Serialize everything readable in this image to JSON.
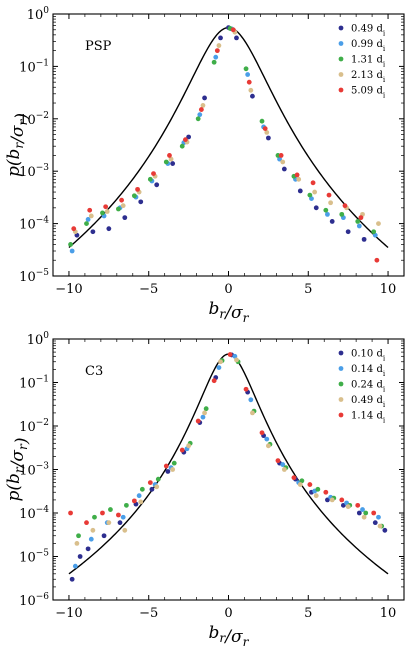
{
  "chart_data": [
    {
      "type": "scatter",
      "panel_label": "PSP",
      "xlabel": "b_r/σ_r",
      "ylabel": "p(b_r/σ_r)",
      "xlim": [
        -11,
        11
      ],
      "ylim_log10": [
        -5,
        0
      ],
      "y_scale": "log",
      "x_ticks": [
        -10,
        -5,
        0,
        5,
        10
      ],
      "y_ticks": [
        "10^-5",
        "10^-4",
        "10^-3",
        "10^-2",
        "10^-1",
        "10^0"
      ],
      "legend_position": "top-right",
      "fit_curve": {
        "style": "solid black",
        "peak": 0.55,
        "value_at_10": 3.5e-05
      },
      "series": [
        {
          "name": "0.49 d_i",
          "color": "#2d2e8f",
          "points": [
            [
              -9.5,
              6e-05
            ],
            [
              -8.5,
              7e-05
            ],
            [
              -7.5,
              8e-05
            ],
            [
              -6.5,
              0.00013
            ],
            [
              -5.5,
              0.00026
            ],
            [
              -4.5,
              0.00055
            ],
            [
              -3.5,
              0.0014
            ],
            [
              -2.5,
              0.0045
            ],
            [
              -1.5,
              0.025
            ],
            [
              -0.5,
              0.35
            ],
            [
              0,
              0.55
            ],
            [
              0.5,
              0.35
            ],
            [
              1.5,
              0.027
            ],
            [
              2.5,
              0.0043
            ],
            [
              3.5,
              0.0011
            ],
            [
              4.5,
              0.00042
            ],
            [
              5.5,
              0.0002
            ],
            [
              6.5,
              0.00011
            ],
            [
              7.5,
              7e-05
            ],
            [
              8.5,
              5e-05
            ]
          ]
        },
        {
          "name": "0.99 d_i",
          "color": "#4a9ee8",
          "points": [
            [
              -9.8,
              3e-05
            ],
            [
              -8.8,
              0.00012
            ],
            [
              -7.8,
              0.00014
            ],
            [
              -6.8,
              0.0002
            ],
            [
              -5.8,
              0.00032
            ],
            [
              -4.8,
              0.00065
            ],
            [
              -3.8,
              0.0014
            ],
            [
              -2.8,
              0.0035
            ],
            [
              -1.8,
              0.012
            ],
            [
              -0.8,
              0.15
            ],
            [
              0.2,
              0.52
            ],
            [
              1.2,
              0.07
            ],
            [
              2.2,
              0.007
            ],
            [
              3.2,
              0.0017
            ],
            [
              4.2,
              0.0007
            ],
            [
              5.2,
              0.0003
            ],
            [
              6.2,
              0.00015
            ],
            [
              7.2,
              0.00013
            ],
            [
              8.2,
              9e-05
            ],
            [
              9.2,
              6e-05
            ]
          ]
        },
        {
          "name": "1.31 d_i",
          "color": "#3fae49",
          "points": [
            [
              -9.9,
              4e-05
            ],
            [
              -8.9,
              0.0001
            ],
            [
              -7.9,
              0.00016
            ],
            [
              -6.9,
              0.00019
            ],
            [
              -5.9,
              0.00034
            ],
            [
              -4.9,
              0.0007
            ],
            [
              -3.9,
              0.0015
            ],
            [
              -2.9,
              0.003
            ],
            [
              -1.9,
              0.01
            ],
            [
              -0.9,
              0.12
            ],
            [
              0.1,
              0.53
            ],
            [
              1.1,
              0.09
            ],
            [
              2.1,
              0.009
            ],
            [
              3.1,
              0.002
            ],
            [
              4.1,
              0.0008
            ],
            [
              5.1,
              0.00035
            ],
            [
              6.1,
              0.00018
            ],
            [
              7.1,
              0.00015
            ],
            [
              8.1,
              0.00011
            ],
            [
              9.1,
              7e-05
            ]
          ]
        },
        {
          "name": "2.13 d_i",
          "color": "#d9bf8c",
          "points": [
            [
              -9.6,
              7e-05
            ],
            [
              -8.6,
              0.00014
            ],
            [
              -7.6,
              0.00017
            ],
            [
              -6.6,
              0.00022
            ],
            [
              -5.6,
              0.0004
            ],
            [
              -4.6,
              0.0008
            ],
            [
              -3.6,
              0.0017
            ],
            [
              -2.6,
              0.0036
            ],
            [
              -1.6,
              0.018
            ],
            [
              -0.6,
              0.25
            ],
            [
              0.4,
              0.45
            ],
            [
              1.4,
              0.035
            ],
            [
              2.4,
              0.0055
            ],
            [
              3.4,
              0.0015
            ],
            [
              4.4,
              0.0007
            ],
            [
              5.4,
              0.0004
            ],
            [
              6.4,
              0.00025
            ],
            [
              7.4,
              0.0002
            ],
            [
              8.4,
              0.00015
            ],
            [
              9.4,
              0.0001
            ]
          ]
        },
        {
          "name": "5.09 d_i",
          "color": "#e83a36",
          "points": [
            [
              -9.7,
              8e-05
            ],
            [
              -8.7,
              0.00018
            ],
            [
              -7.7,
              0.00021
            ],
            [
              -6.7,
              0.00028
            ],
            [
              -5.7,
              0.00045
            ],
            [
              -4.7,
              0.0009
            ],
            [
              -3.7,
              0.002
            ],
            [
              -2.7,
              0.004
            ],
            [
              -1.7,
              0.015
            ],
            [
              -0.7,
              0.2
            ],
            [
              0.3,
              0.5
            ],
            [
              1.3,
              0.05
            ],
            [
              2.3,
              0.0065
            ],
            [
              3.3,
              0.002
            ],
            [
              4.3,
              0.00085
            ],
            [
              5.3,
              0.0006
            ],
            [
              6.3,
              0.00035
            ],
            [
              7.3,
              0.00022
            ],
            [
              8.3,
              0.00013
            ],
            [
              9.3,
              2e-05
            ]
          ]
        }
      ]
    },
    {
      "type": "scatter",
      "panel_label": "C3",
      "xlabel": "b_r/σ_r",
      "ylabel": "p(b_r/σ_r)",
      "xlim": [
        -11,
        11
      ],
      "ylim_log10": [
        -6,
        0
      ],
      "y_scale": "log",
      "x_ticks": [
        -10,
        -5,
        0,
        5,
        10
      ],
      "y_ticks": [
        "10^-6",
        "10^-5",
        "10^-4",
        "10^-3",
        "10^-2",
        "10^-1",
        "10^0"
      ],
      "legend_position": "top-right",
      "fit_curve": {
        "style": "solid black",
        "peak": 0.45,
        "value_at_10": 4e-06
      },
      "series": [
        {
          "name": "0.10 d_i",
          "color": "#2d2e8f",
          "points": [
            [
              -9.8,
              3e-06
            ],
            [
              -9.3,
              1e-05
            ],
            [
              -8.8,
              1.5e-05
            ],
            [
              -7.8,
              3e-05
            ],
            [
              -6.8,
              6e-05
            ],
            [
              -5.8,
              0.00016
            ],
            [
              -4.8,
              0.00035
            ],
            [
              -3.8,
              0.0009
            ],
            [
              -2.8,
              0.0025
            ],
            [
              -1.8,
              0.012
            ],
            [
              -0.8,
              0.13
            ],
            [
              0.2,
              0.43
            ],
            [
              1.2,
              0.06
            ],
            [
              2.2,
              0.006
            ],
            [
              3.2,
              0.0014
            ],
            [
              4.2,
              0.0006
            ],
            [
              5.2,
              0.0003
            ],
            [
              6.2,
              0.0002
            ],
            [
              7.2,
              0.00015
            ],
            [
              8.2,
              0.0001
            ],
            [
              9.2,
              6e-05
            ],
            [
              9.8,
              4e-05
            ]
          ]
        },
        {
          "name": "0.14 d_i",
          "color": "#4a9ee8",
          "points": [
            [
              -9.6,
              6e-06
            ],
            [
              -8.6,
              2.5e-05
            ],
            [
              -7.6,
              6e-05
            ],
            [
              -6.6,
              8e-05
            ],
            [
              -5.6,
              0.00025
            ],
            [
              -4.6,
              0.00045
            ],
            [
              -3.6,
              0.0011
            ],
            [
              -2.6,
              0.003
            ],
            [
              -1.6,
              0.016
            ],
            [
              -0.6,
              0.22
            ],
            [
              0.4,
              0.4
            ],
            [
              1.4,
              0.04
            ],
            [
              2.4,
              0.005
            ],
            [
              3.4,
              0.0013
            ],
            [
              4.4,
              0.0005
            ],
            [
              5.4,
              0.00032
            ],
            [
              6.4,
              0.00023
            ],
            [
              7.4,
              0.00017
            ],
            [
              8.4,
              0.00012
            ],
            [
              9.4,
              8e-05
            ]
          ]
        },
        {
          "name": "0.24 d_i",
          "color": "#3fae49",
          "points": [
            [
              -9.4,
              3e-05
            ],
            [
              -8.4,
              8e-05
            ],
            [
              -7.4,
              0.00012
            ],
            [
              -6.4,
              0.00015
            ],
            [
              -5.4,
              0.00035
            ],
            [
              -4.4,
              0.0006
            ],
            [
              -3.4,
              0.0014
            ],
            [
              -2.4,
              0.004
            ],
            [
              -1.4,
              0.025
            ],
            [
              -0.4,
              0.32
            ],
            [
              0.6,
              0.3
            ],
            [
              1.6,
              0.022
            ],
            [
              2.6,
              0.0038
            ],
            [
              3.6,
              0.0011
            ],
            [
              4.6,
              0.00055
            ],
            [
              5.6,
              0.00035
            ],
            [
              6.6,
              0.00022
            ],
            [
              7.6,
              0.00015
            ],
            [
              8.6,
              0.0001
            ],
            [
              9.6,
              5e-05
            ]
          ]
        },
        {
          "name": "0.49 d_i",
          "color": "#d9bf8c",
          "points": [
            [
              -9.5,
              2e-05
            ],
            [
              -8.5,
              4e-05
            ],
            [
              -7.5,
              6e-05
            ],
            [
              -6.5,
              4e-05
            ],
            [
              -5.5,
              0.00018
            ],
            [
              -4.5,
              0.0004
            ],
            [
              -3.5,
              0.001
            ],
            [
              -2.5,
              0.0035
            ],
            [
              -1.5,
              0.02
            ],
            [
              -0.5,
              0.3
            ],
            [
              0.5,
              0.33
            ],
            [
              1.5,
              0.02
            ],
            [
              2.5,
              0.0035
            ],
            [
              3.5,
              0.001
            ],
            [
              4.5,
              0.00045
            ],
            [
              5.5,
              0.00025
            ],
            [
              6.5,
              0.0002
            ],
            [
              7.5,
              0.00014
            ],
            [
              8.5,
              8e-05
            ],
            [
              9.5,
              5e-05
            ]
          ]
        },
        {
          "name": "1.14 d_i",
          "color": "#e83a36",
          "points": [
            [
              -9.9,
              0.0001
            ],
            [
              -8.9,
              6e-05
            ],
            [
              -7.9,
              0.0001
            ],
            [
              -6.9,
              9e-05
            ],
            [
              -5.9,
              0.00019
            ],
            [
              -4.9,
              0.0005
            ],
            [
              -3.9,
              0.0012
            ],
            [
              -2.9,
              0.0028
            ],
            [
              -1.9,
              0.013
            ],
            [
              -0.9,
              0.11
            ],
            [
              0.1,
              0.44
            ],
            [
              1.1,
              0.07
            ],
            [
              2.1,
              0.007
            ],
            [
              3.1,
              0.0016
            ],
            [
              4.1,
              0.00065
            ],
            [
              5.1,
              0.00045
            ],
            [
              6.1,
              0.0003
            ],
            [
              7.1,
              0.0002
            ],
            [
              8.1,
              0.00015
            ],
            [
              9.1,
              0.0001
            ]
          ]
        }
      ]
    }
  ]
}
